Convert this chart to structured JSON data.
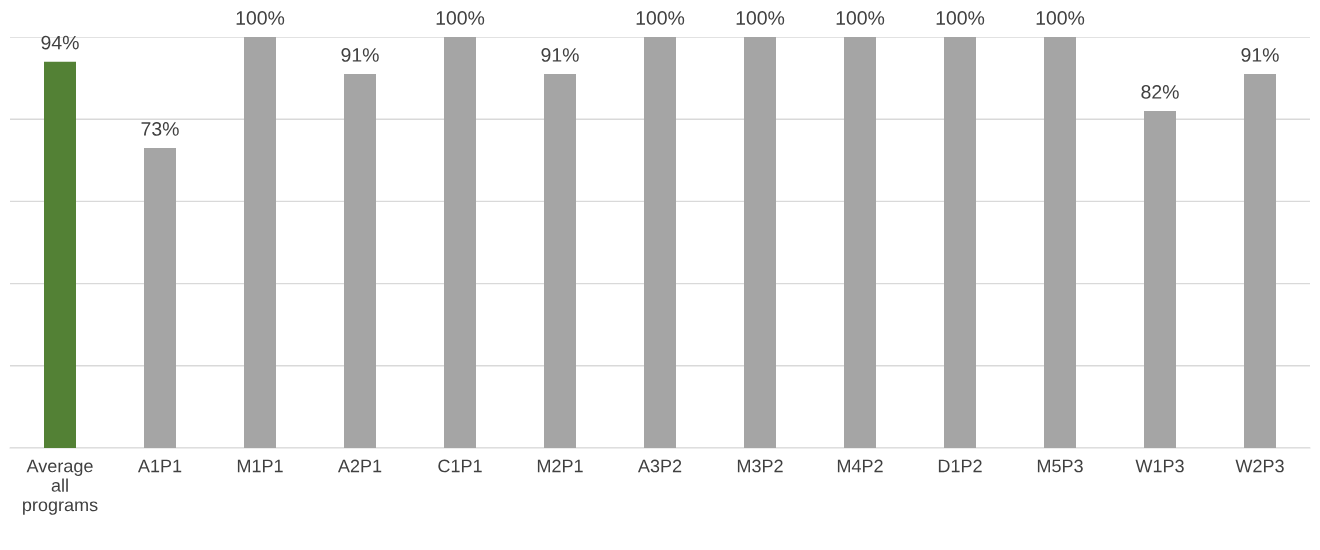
{
  "chart_data": {
    "type": "bar",
    "categories": [
      "Average\nall\nprograms",
      "A1P1",
      "M1P1",
      "A2P1",
      "C1P1",
      "M2P1",
      "A3P2",
      "M3P2",
      "M4P2",
      "D1P2",
      "M5P3",
      "W1P3",
      "W2P3"
    ],
    "values": [
      94,
      73,
      100,
      91,
      100,
      91,
      100,
      100,
      100,
      100,
      100,
      82,
      91
    ],
    "value_labels": [
      "94%",
      "73%",
      "100%",
      "91%",
      "100%",
      "91%",
      "100%",
      "100%",
      "100%",
      "100%",
      "100%",
      "82%",
      "91%"
    ],
    "colors": [
      "#538135",
      "#a5a5a5",
      "#a5a5a5",
      "#a5a5a5",
      "#a5a5a5",
      "#a5a5a5",
      "#a5a5a5",
      "#a5a5a5",
      "#a5a5a5",
      "#a5a5a5",
      "#a5a5a5",
      "#a5a5a5",
      "#a5a5a5"
    ],
    "ylim": [
      0,
      100
    ],
    "yticks": [
      {
        "value": 0,
        "label": null
      },
      {
        "value": 20,
        "label": null
      },
      {
        "value": 40,
        "label": null
      },
      {
        "value": 60,
        "label": null
      },
      {
        "value": 80,
        "label": null
      },
      {
        "value": 100,
        "label": null
      }
    ],
    "grid": "y",
    "tick_labels": "x"
  }
}
